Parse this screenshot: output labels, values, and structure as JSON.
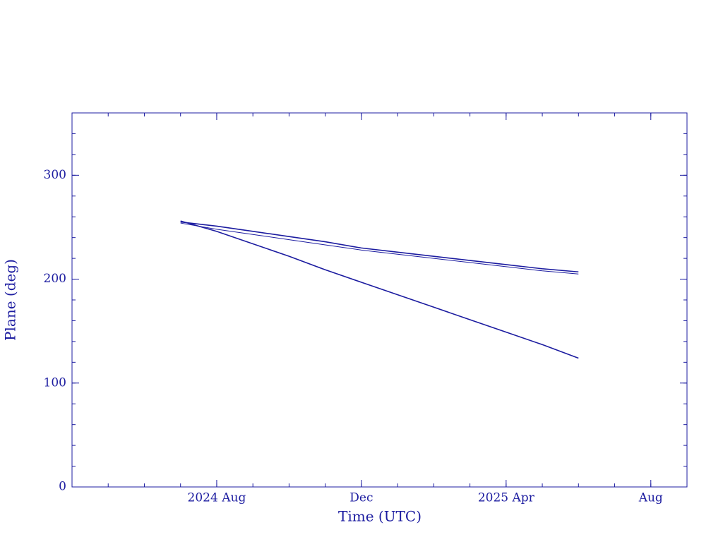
{
  "chart_data": {
    "type": "line",
    "xlabel": "Time (UTC)",
    "ylabel": "Plane (deg)",
    "x": [
      "2024-07",
      "2024-08",
      "2024-09",
      "2024-10",
      "2024-11",
      "2024-12",
      "2025-01",
      "2025-02",
      "2025-03",
      "2025-04",
      "2025-05",
      "2025-06"
    ],
    "series": [
      {
        "color": "#1c1ca0",
        "values": [
          256,
          246,
          234,
          222,
          209,
          197,
          185,
          173,
          161,
          149,
          137,
          124
        ]
      },
      {
        "color": "#1c1ca0",
        "values": [
          255,
          251,
          246,
          241,
          236,
          230,
          226,
          222,
          218,
          214,
          210,
          207
        ]
      },
      {
        "color": "#1c1ca0",
        "values": [
          254,
          248,
          243,
          238,
          233,
          228,
          224,
          220,
          216,
          212,
          208,
          205
        ]
      }
    ],
    "xlim": [
      "2024-04",
      "2025-09"
    ],
    "xticks": [
      {
        "value": "2024-08",
        "label": "2024 Aug"
      },
      {
        "value": "2024-12",
        "label": "Dec"
      },
      {
        "value": "2025-04",
        "label": "2025 Apr"
      },
      {
        "value": "2025-08",
        "label": "Aug"
      }
    ],
    "ylim": [
      0,
      360
    ],
    "yticks": [
      0,
      100,
      200,
      300
    ]
  }
}
